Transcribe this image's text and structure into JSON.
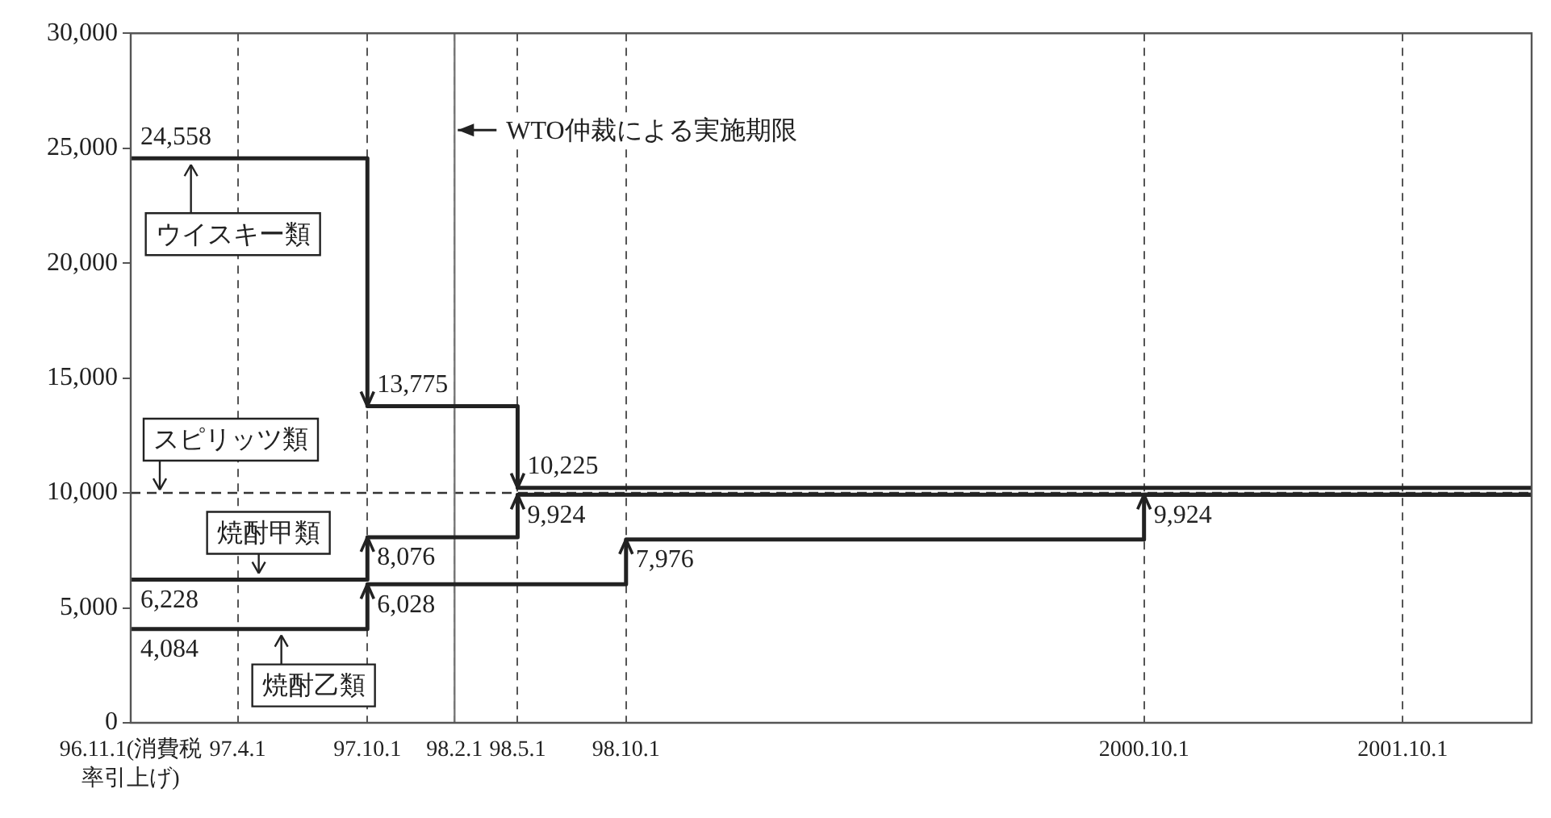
{
  "chart_data": {
    "type": "step",
    "xlim": [
      "1996-11-01",
      "2002-04-01"
    ],
    "xticks": [
      {
        "value": "1996-11-01",
        "label": "96.11.1(消費税率引上げ)"
      },
      {
        "value": "1997-04-01",
        "label": "97.4.1"
      },
      {
        "value": "1997-10-01",
        "label": "97.10.1"
      },
      {
        "value": "1998-02-01",
        "label": "98.2.1"
      },
      {
        "value": "1998-05-01",
        "label": "98.5.1"
      },
      {
        "value": "1998-10-01",
        "label": "98.10.1"
      },
      {
        "value": "2000-10-01",
        "label": "2000.10.1"
      },
      {
        "value": "2001-10-01",
        "label": "2001.10.1"
      }
    ],
    "ylim": [
      0,
      30000
    ],
    "yticks": [
      0,
      {
        "value": 5000,
        "label": "5,000"
      },
      {
        "value": 10000,
        "label": "10,000"
      },
      {
        "value": 15000,
        "label": "15,000"
      },
      {
        "value": 20000,
        "label": "20,000"
      },
      {
        "value": 25000,
        "label": "25,000"
      },
      {
        "value": 30000,
        "label": "30,000"
      }
    ],
    "grid": "x",
    "legend": "left",
    "series": [
      {
        "name": "ウイスキー類",
        "color": "#222222",
        "x": [
          "1996-11-01",
          "1997-10-01",
          "1998-05-01",
          "2002-04-01"
        ],
        "values": [
          24558,
          13775,
          10225,
          10225
        ],
        "value_labels": [
          "24,558",
          "13,775",
          "10,225",
          null
        ]
      },
      {
        "name": "焼酎甲類",
        "color": "#222222",
        "x": [
          "1996-11-01",
          "1997-10-01",
          "1998-05-01",
          "2002-04-01"
        ],
        "values": [
          6228,
          8076,
          9924,
          9924
        ],
        "value_labels": [
          "6,228",
          "8,076",
          "9,924",
          null
        ]
      },
      {
        "name": "焼酎乙類",
        "color": "#222222",
        "x": [
          "1996-11-01",
          "1997-10-01",
          "1998-10-01",
          "2000-10-01",
          "2002-04-01"
        ],
        "values": [
          4084,
          6028,
          7976,
          9924,
          9924
        ],
        "value_labels": [
          "4,084",
          "6,028",
          "7,976",
          "9,924",
          null
        ]
      }
    ],
    "ref_lines": [
      {
        "axis": "y",
        "value": 10000,
        "label": "スピリッツ類",
        "line_style": "dashed",
        "color": "#333333"
      },
      {
        "axis": "x",
        "value": "1998-02-01",
        "label": "WTO仲裁による実施期限",
        "line_style": "solid",
        "color": "#777777"
      }
    ]
  }
}
